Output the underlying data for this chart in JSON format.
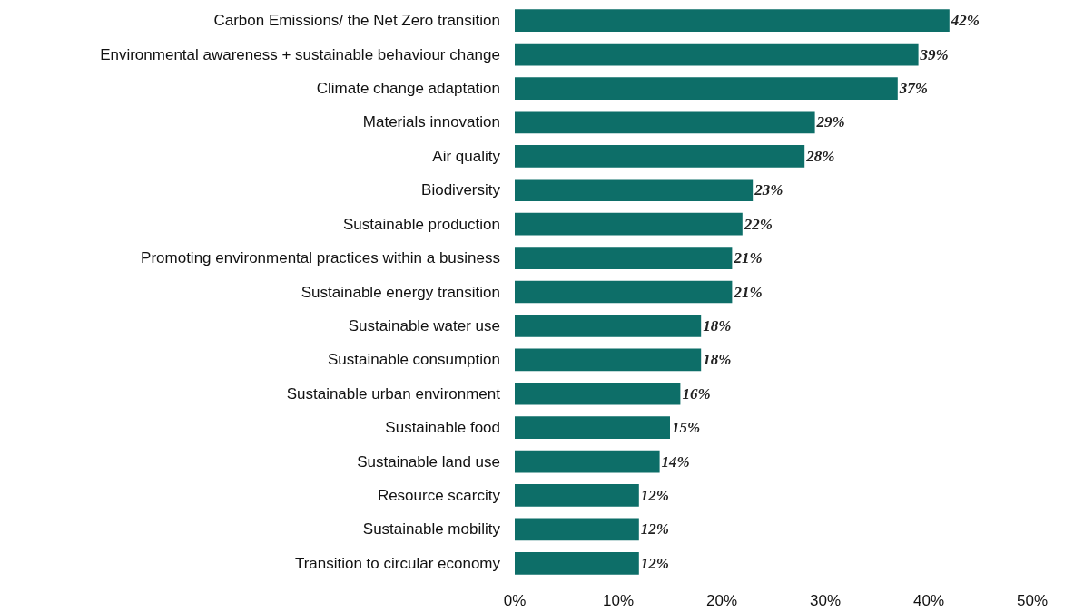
{
  "chart_data": {
    "type": "bar",
    "orientation": "horizontal",
    "categories": [
      "Carbon Emissions/ the Net Zero transition",
      "Environmental awareness + sustainable behaviour change",
      "Climate change adaptation",
      "Materials innovation",
      "Air quality",
      "Biodiversity",
      "Sustainable production",
      "Promoting environmental practices within a business",
      "Sustainable energy transition",
      "Sustainable water use",
      "Sustainable consumption",
      "Sustainable urban environment",
      "Sustainable food",
      "Sustainable land use",
      "Resource scarcity",
      "Sustainable mobility",
      "Transition to circular economy"
    ],
    "values": [
      42,
      39,
      37,
      29,
      28,
      23,
      22,
      21,
      21,
      18,
      18,
      16,
      15,
      14,
      12,
      12,
      12
    ],
    "value_labels": [
      "42%",
      "39%",
      "37%",
      "29%",
      "28%",
      "23%",
      "22%",
      "21%",
      "21%",
      "18%",
      "18%",
      "16%",
      "15%",
      "14%",
      "12%",
      "12%",
      "12%"
    ],
    "color": "#0d6e68",
    "xlim": [
      0,
      50
    ],
    "xticks": [
      {
        "value": 0,
        "label": "0%"
      },
      {
        "value": 10,
        "label": "10%"
      },
      {
        "value": 20,
        "label": "20%"
      },
      {
        "value": 30,
        "label": "30%"
      },
      {
        "value": 40,
        "label": "40%"
      },
      {
        "value": 50,
        "label": "50%"
      }
    ],
    "grid": false
  }
}
